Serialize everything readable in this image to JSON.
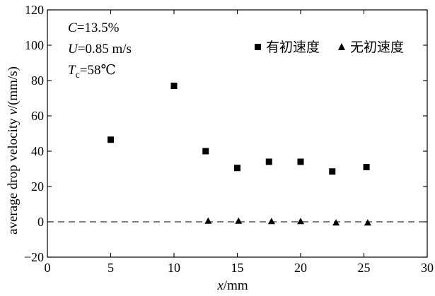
{
  "chart_data": {
    "type": "scatter",
    "title": "",
    "xlabel": "x/mm",
    "xlabel_var": "x",
    "xlabel_unit": "/mm",
    "ylabel": "average drop velocity v/(mm/s)",
    "ylabel_text": "average drop velocity ",
    "ylabel_var": "v",
    "ylabel_unit": "/(mm/s)",
    "xlim": [
      0,
      30
    ],
    "ylim": [
      -20,
      120
    ],
    "xticks": [
      0,
      5,
      10,
      15,
      20,
      25,
      30
    ],
    "yticks": [
      -20,
      0,
      20,
      40,
      60,
      80,
      100,
      120
    ],
    "reference_line": {
      "y": 0,
      "style": "dashed"
    },
    "grid": false,
    "legend_placement": "top-right",
    "annotations": [
      {
        "var": "C",
        "text": "=13.5%"
      },
      {
        "var": "U",
        "text": "=0.85 m/s"
      },
      {
        "var": "T",
        "sub": "c",
        "text": "=58℃"
      }
    ],
    "series": [
      {
        "name": "有初速度",
        "marker": "square",
        "x": [
          5.0,
          10.0,
          12.5,
          15.0,
          17.5,
          20.0,
          22.5,
          25.2
        ],
        "y": [
          46.5,
          77.0,
          40.0,
          30.5,
          34.0,
          34.0,
          28.5,
          31.0
        ]
      },
      {
        "name": "无初速度",
        "marker": "triangle",
        "x": [
          12.7,
          15.1,
          17.7,
          20.0,
          22.8,
          25.3
        ],
        "y": [
          0.5,
          0.5,
          0.3,
          0.3,
          -0.5,
          -0.5
        ]
      }
    ]
  }
}
